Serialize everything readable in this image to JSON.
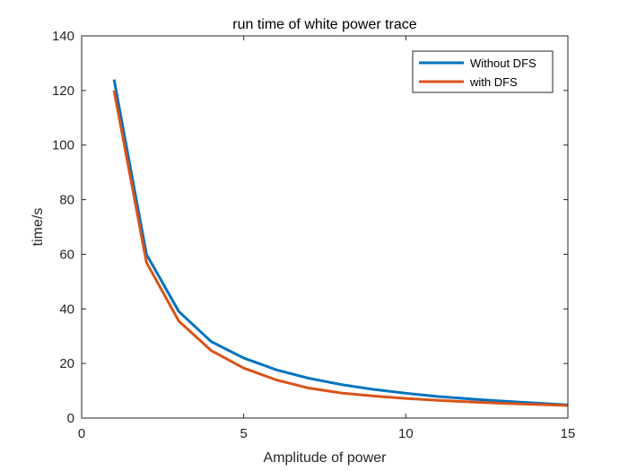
{
  "chart_data": {
    "type": "line",
    "title": "run time of white power trace",
    "xlabel": "Amplitude of power",
    "ylabel": "time/s",
    "xlim": [
      0,
      15
    ],
    "ylim": [
      0,
      140
    ],
    "xticks": [
      0,
      5,
      10,
      15
    ],
    "yticks": [
      0,
      20,
      40,
      60,
      80,
      100,
      120,
      140
    ],
    "grid": false,
    "legend_position": "top-right",
    "x": [
      1,
      2,
      3,
      4,
      5,
      6,
      7,
      8,
      9,
      10,
      11,
      12,
      13,
      14,
      15
    ],
    "series": [
      {
        "name": "Without DFS",
        "color": "#0072BD",
        "values": [
          124,
          60,
          39,
          28,
          22,
          17.7,
          14.6,
          12.3,
          10.5,
          9.1,
          7.9,
          7.0,
          6.2,
          5.5,
          4.8
        ]
      },
      {
        "name": "with DFS",
        "color": "#D95319",
        "values": [
          120,
          57,
          35.5,
          24.7,
          18.3,
          14,
          11,
          9.2,
          8.1,
          7.2,
          6.5,
          5.9,
          5.4,
          5.0,
          4.6
        ]
      }
    ]
  }
}
